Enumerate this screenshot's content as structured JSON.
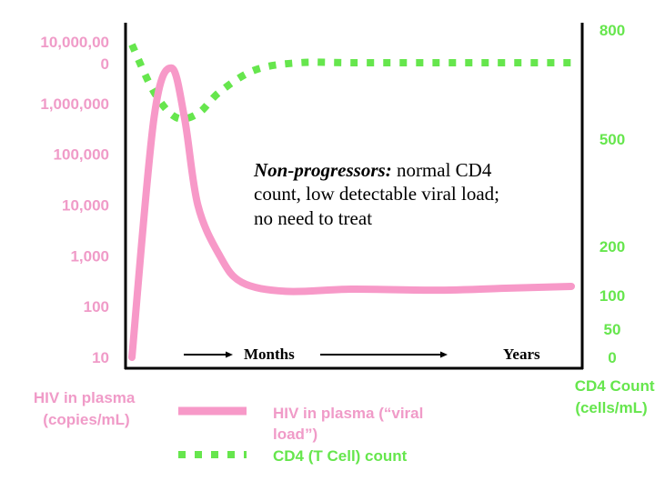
{
  "chart_data": {
    "type": "line",
    "title": "",
    "annotation": {
      "bold_italic": "Non-progressors:",
      "line1_rest": " normal CD4",
      "line2": "count, low detectable viral load;",
      "line3": "no need to treat"
    },
    "x_axis": {
      "labels": [
        "Months",
        "Years"
      ],
      "arrows": 2,
      "scale": "qualitative time (months then years)"
    },
    "left_axis": {
      "title_lines": [
        "HIV in plasma",
        "(copies/mL)"
      ],
      "scale": "log",
      "ticks": [
        {
          "value": 10000000,
          "label_lines": [
            "10,000,00",
            "0"
          ]
        },
        {
          "value": 1000000,
          "label_lines": [
            "1,000,000"
          ]
        },
        {
          "value": 100000,
          "label_lines": [
            "100,000"
          ]
        },
        {
          "value": 10000,
          "label_lines": [
            "10,000"
          ]
        },
        {
          "value": 1000,
          "label_lines": [
            "1,000"
          ]
        },
        {
          "value": 100,
          "label_lines": [
            "100"
          ]
        },
        {
          "value": 10,
          "label_lines": [
            "10"
          ]
        }
      ],
      "color": "#f09bc8"
    },
    "right_axis": {
      "title_lines": [
        "CD4 Count",
        "(cells/mL)"
      ],
      "ticks": [
        {
          "value": 800,
          "label": "800"
        },
        {
          "value": 500,
          "label": "500"
        },
        {
          "value": 200,
          "label": "200"
        },
        {
          "value": 100,
          "label": "100"
        },
        {
          "value": 50,
          "label": "50"
        },
        {
          "value": 0,
          "label": "0"
        }
      ],
      "color": "#66e64d"
    },
    "series": [
      {
        "name": "HIV in plasma (“viral load”)",
        "axis": "left",
        "style": "solid",
        "color": "#f799c8",
        "x": [
          0,
          0.05,
          0.09,
          0.12,
          0.15,
          0.2,
          0.25,
          0.35,
          0.5,
          0.7,
          0.85,
          1.0
        ],
        "values": [
          10,
          500000,
          5000000,
          500000,
          10000,
          1000,
          300,
          200,
          220,
          210,
          230,
          250
        ]
      },
      {
        "name": "CD4 (T Cell) count",
        "axis": "right",
        "style": "dotted",
        "color": "#66e64d",
        "x": [
          0,
          0.05,
          0.1,
          0.15,
          0.2,
          0.28,
          0.38,
          0.5,
          0.7,
          0.85,
          1.0
        ],
        "values": [
          760,
          630,
          560,
          570,
          630,
          690,
          710,
          710,
          710,
          710,
          710
        ]
      }
    ],
    "legend": {
      "position": "bottom",
      "entries": [
        {
          "label_lines": [
            "HIV in plasma (“viral",
            "load”)"
          ],
          "style": "solid",
          "color": "#f799c8"
        },
        {
          "label_lines": [
            "CD4 (T Cell) count"
          ],
          "style": "dotted",
          "color": "#66e64d"
        }
      ]
    },
    "grid": false
  }
}
